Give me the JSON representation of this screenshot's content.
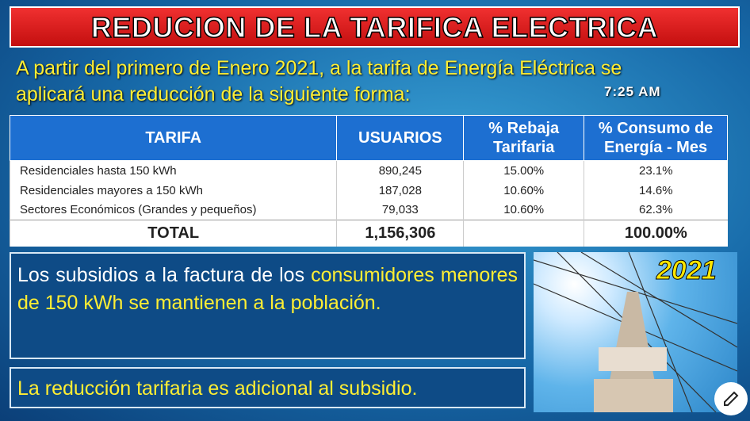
{
  "header": {
    "title": "REDUCION DE LA TARIFICA ELECTRICA",
    "time": "7:25 AM"
  },
  "intro": {
    "lines": [
      "A partir del primero de Enero 2021, a la tarifa de Energía Eléctrica se",
      "aplicará una reducción de la siguiente forma:"
    ]
  },
  "table": {
    "columns": [
      [
        "TARIFA"
      ],
      [
        "USUARIOS"
      ],
      [
        "% Rebaja",
        "Tarifaria"
      ],
      [
        "% Consumo de",
        "Energía - Mes"
      ]
    ],
    "rows": [
      [
        "Residenciales hasta 150 kWh",
        "890,245",
        "15.00%",
        "23.1%"
      ],
      [
        "Residenciales mayores a 150 kWh",
        "187,028",
        "10.60%",
        "14.6%"
      ],
      [
        "Sectores Económicos (Grandes y pequeños)",
        "79,033",
        "10.60%",
        "62.3%"
      ]
    ],
    "total": {
      "label": "TOTAL",
      "users": "1,156,306",
      "consumption": "100.00%"
    }
  },
  "subsidy": {
    "text_1": "Los subsidios a la factura de  los",
    "text_2": "consumidores menores de 150 kWh se mantienen a la población."
  },
  "note": "La reducción tarifaria es adicional al subsidio.",
  "year": "2021"
}
